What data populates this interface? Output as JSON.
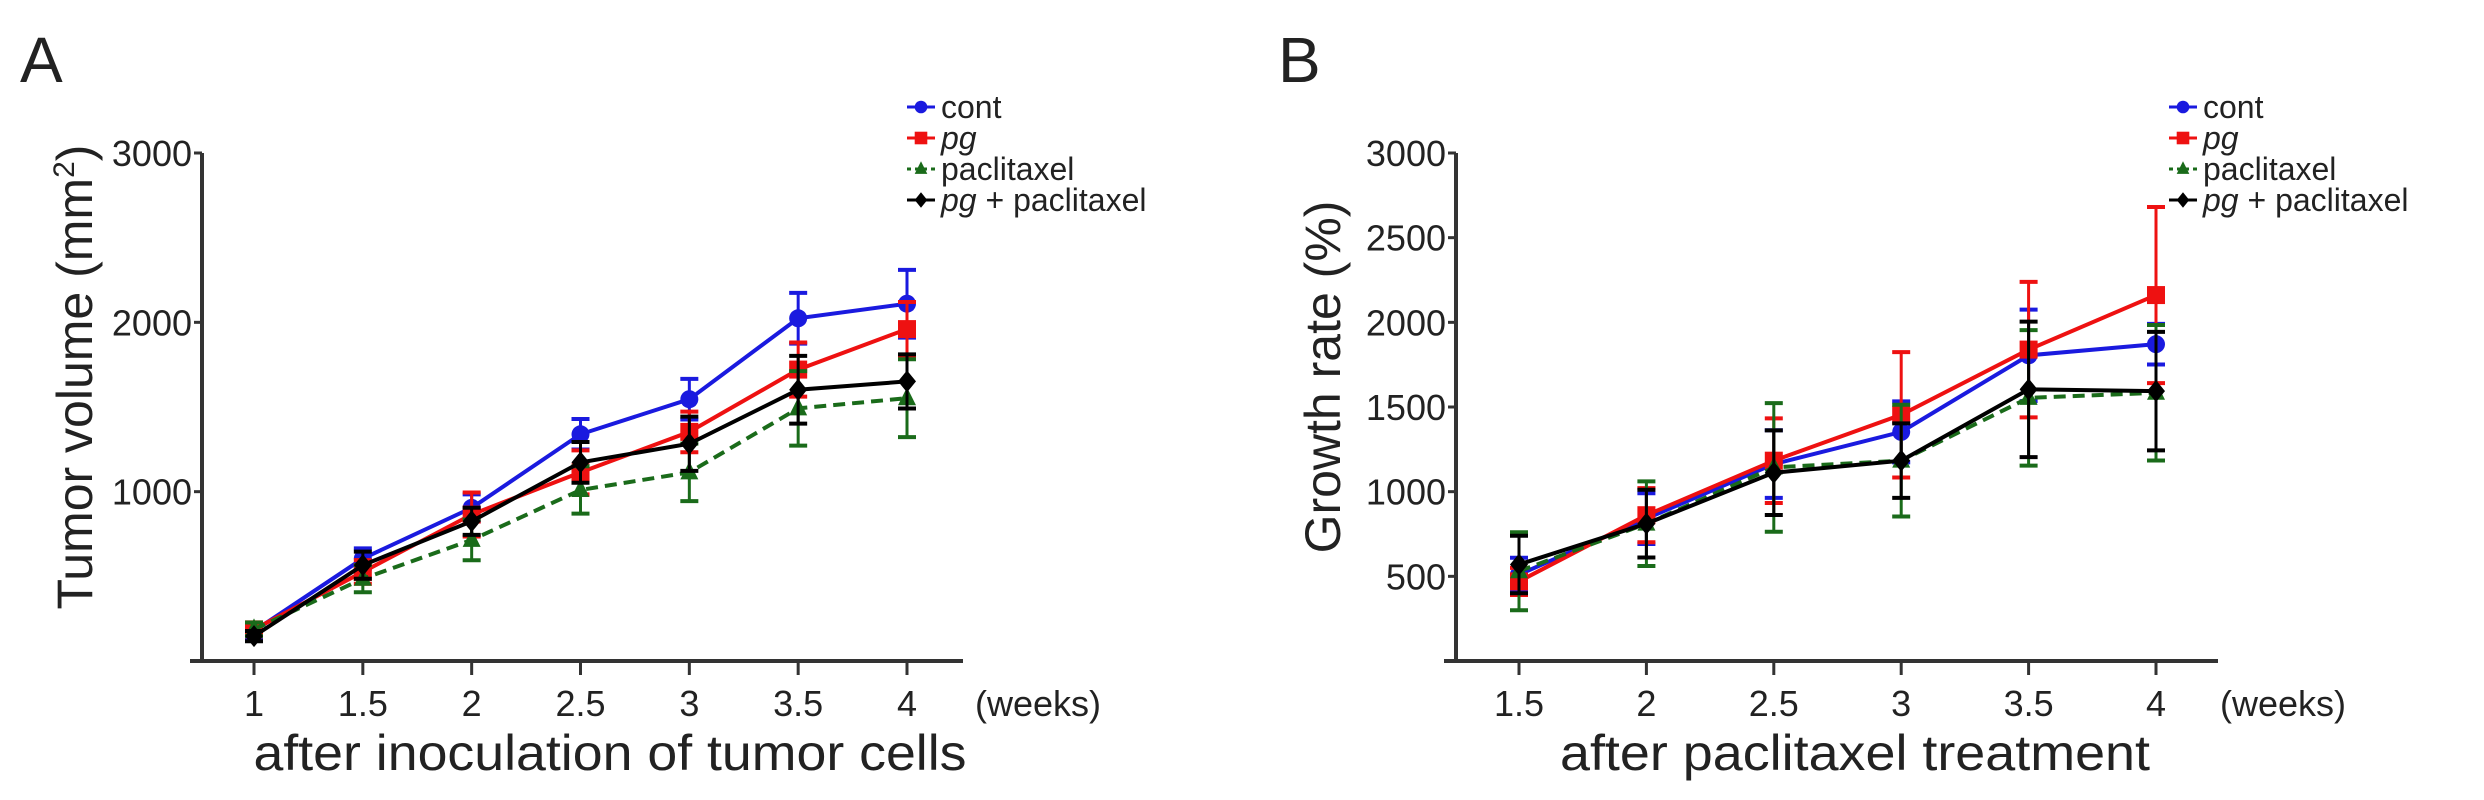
{
  "chart_data": [
    {
      "type": "line",
      "panel_label": "A",
      "title": "",
      "xlabel": "after inoculation of tumor cells",
      "x_unit": "(weeks)",
      "ylabel": "Tumor volume (mm",
      "ylabel_sup": "2",
      "ylabel_end": ")",
      "ylim": [
        0,
        3000
      ],
      "yticks": [
        1000,
        2000,
        3000
      ],
      "x": [
        1,
        1.5,
        2,
        2.5,
        3,
        3.5,
        4
      ],
      "xtick_labels": [
        "1",
        "1.5",
        "2",
        "2.5",
        "3",
        "3.5",
        "4"
      ],
      "xlim": [
        0.8,
        4.2
      ],
      "legend_position": "top-right",
      "series": [
        {
          "name": "cont",
          "italic": false,
          "color": "#1a1adf",
          "dash": false,
          "marker": "circle",
          "values": [
            177,
            605,
            904,
            1339,
            1546,
            2024,
            2110
          ],
          "error": [
            40,
            60,
            80,
            90,
            120,
            150,
            200
          ]
        },
        {
          "name": "pg",
          "italic": true,
          "color": "#ee1111",
          "dash": false,
          "marker": "square",
          "values": [
            187,
            526,
            865,
            1114,
            1353,
            1721,
            1960
          ],
          "error": [
            40,
            70,
            130,
            130,
            120,
            160,
            160
          ]
        },
        {
          "name": "paclitaxel",
          "italic": false,
          "color": "#1a6b1a",
          "dash": true,
          "marker": "triangle",
          "values": [
            187,
            486,
            715,
            1010,
            1114,
            1492,
            1552
          ],
          "error": [
            40,
            80,
            120,
            140,
            170,
            220,
            230
          ]
        },
        {
          "name": "pg + paclitaxel",
          "italic": true,
          "italic_part": "pg",
          "rest": " + paclitaxel",
          "color": "#000000",
          "dash": false,
          "marker": "diamond",
          "values": [
            147,
            566,
            825,
            1173,
            1283,
            1602,
            1651
          ],
          "error": [
            30,
            80,
            80,
            120,
            160,
            200,
            160
          ]
        }
      ]
    },
    {
      "type": "line",
      "panel_label": "B",
      "title": "",
      "xlabel": "after paclitaxel treatment",
      "x_unit": "(weeks)",
      "ylabel": "Growth rate (%)",
      "ylim": [
        0,
        3000
      ],
      "yticks": [
        500,
        1000,
        1500,
        2000,
        2500,
        3000
      ],
      "x": [
        1.5,
        2,
        2.5,
        3,
        3.5,
        4
      ],
      "xtick_labels": [
        "1.5",
        "2",
        "2.5",
        "3",
        "3.5",
        "4"
      ],
      "xlim": [
        1.3,
        4.2
      ],
      "legend_position": "top-right",
      "series": [
        {
          "name": "cont",
          "italic": false,
          "color": "#1a1adf",
          "dash": false,
          "marker": "circle",
          "values": [
            510,
            841,
            1163,
            1353,
            1805,
            1871
          ],
          "error": [
            100,
            150,
            200,
            180,
            270,
            120
          ]
        },
        {
          "name": "pg",
          "italic": true,
          "color": "#ee1111",
          "dash": false,
          "marker": "square",
          "values": [
            470,
            861,
            1183,
            1454,
            1839,
            2161
          ],
          "error": [
            80,
            160,
            250,
            370,
            400,
            520
          ]
        },
        {
          "name": "paclitaxel",
          "italic": false,
          "color": "#1a6b1a",
          "dash": true,
          "marker": "triangle",
          "values": [
            530,
            811,
            1143,
            1183,
            1554,
            1584
          ],
          "error": [
            230,
            250,
            380,
            330,
            400,
            400
          ]
        },
        {
          "name": "pg + paclitaxel",
          "italic": true,
          "italic_part": "pg",
          "rest": " + paclitaxel",
          "color": "#000000",
          "dash": false,
          "marker": "diamond",
          "values": [
            570,
            811,
            1112,
            1183,
            1604,
            1594
          ],
          "error": [
            170,
            200,
            250,
            220,
            400,
            350
          ]
        }
      ]
    }
  ]
}
